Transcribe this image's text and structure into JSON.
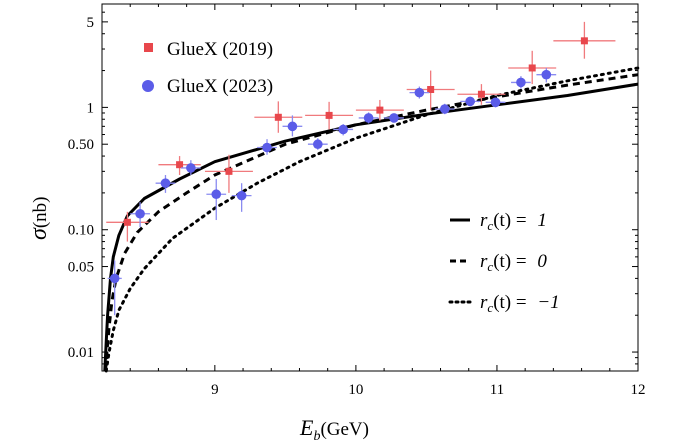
{
  "chart_data": {
    "type": "scatter",
    "xlabel_main": "E",
    "xlabel_sub": "b",
    "xlabel_unit": "(GeV)",
    "ylabel_main": "σ",
    "ylabel_unit": "(nb)",
    "xlim": [
      8.2,
      12.0
    ],
    "ylim": [
      0.007,
      7.0
    ],
    "yscale": "log",
    "x_ticks": [
      9,
      10,
      11,
      12
    ],
    "x_tick_labels": [
      "9",
      "10",
      "11",
      "12"
    ],
    "y_ticks": [
      0.01,
      0.05,
      0.1,
      0.5,
      1,
      5
    ],
    "y_tick_labels": [
      "0.01",
      "0.05",
      "0.10",
      "0.50",
      "1",
      "5"
    ],
    "legend_points": [
      {
        "name": "GlueX (2019)",
        "color": "#e8474c",
        "marker": "square"
      },
      {
        "name": "GlueX (2023)",
        "color": "#5b5ce8",
        "marker": "circle"
      }
    ],
    "legend_lines": [
      {
        "label_pre": "r",
        "label_sub": "c",
        "label_post": "(t) = ",
        "label_val": "1",
        "dash": "solid"
      },
      {
        "label_pre": "r",
        "label_sub": "c",
        "label_post": "(t) = ",
        "label_val": "0",
        "dash": "dashed"
      },
      {
        "label_pre": "r",
        "label_sub": "c",
        "label_post": "(t) = ",
        "label_val": "−1",
        "dash": "dotted"
      }
    ],
    "series": [
      {
        "name": "GlueX (2019)",
        "marker": "square",
        "color": "#e8474c",
        "points": [
          {
            "x": 8.38,
            "y": 0.115,
            "xerr": 0.15,
            "ylo": 0.08,
            "yhi": 0.14
          },
          {
            "x": 8.75,
            "y": 0.34,
            "xerr": 0.15,
            "ylo": 0.28,
            "yhi": 0.4
          },
          {
            "x": 9.1,
            "y": 0.3,
            "xerr": 0.17,
            "ylo": 0.2,
            "yhi": 0.41
          },
          {
            "x": 9.45,
            "y": 0.83,
            "xerr": 0.17,
            "ylo": 0.62,
            "yhi": 1.12
          },
          {
            "x": 9.81,
            "y": 0.86,
            "xerr": 0.17,
            "ylo": 0.66,
            "yhi": 1.11
          },
          {
            "x": 10.17,
            "y": 0.95,
            "xerr": 0.17,
            "ylo": 0.78,
            "yhi": 1.15
          },
          {
            "x": 10.53,
            "y": 1.4,
            "xerr": 0.17,
            "ylo": 0.95,
            "yhi": 2.0
          },
          {
            "x": 10.89,
            "y": 1.28,
            "xerr": 0.17,
            "ylo": 1.05,
            "yhi": 1.55
          },
          {
            "x": 11.25,
            "y": 2.1,
            "xerr": 0.17,
            "ylo": 1.55,
            "yhi": 2.9
          },
          {
            "x": 11.62,
            "y": 3.5,
            "xerr": 0.22,
            "ylo": 2.5,
            "yhi": 5.0
          }
        ]
      },
      {
        "name": "GlueX (2023)",
        "marker": "circle",
        "color": "#5b5ce8",
        "points": [
          {
            "x": 8.29,
            "y": 0.04,
            "xerr": 0.05,
            "ylo": 0.02,
            "yhi": 0.056
          },
          {
            "x": 8.47,
            "y": 0.135,
            "xerr": 0.07,
            "ylo": 0.105,
            "yhi": 0.168
          },
          {
            "x": 8.65,
            "y": 0.24,
            "xerr": 0.07,
            "ylo": 0.2,
            "yhi": 0.28
          },
          {
            "x": 8.83,
            "y": 0.32,
            "xerr": 0.07,
            "ylo": 0.28,
            "yhi": 0.37
          },
          {
            "x": 9.01,
            "y": 0.195,
            "xerr": 0.07,
            "ylo": 0.12,
            "yhi": 0.26
          },
          {
            "x": 9.19,
            "y": 0.19,
            "xerr": 0.07,
            "ylo": 0.14,
            "yhi": 0.24
          },
          {
            "x": 9.37,
            "y": 0.47,
            "xerr": 0.07,
            "ylo": 0.41,
            "yhi": 0.55
          },
          {
            "x": 9.55,
            "y": 0.7,
            "xerr": 0.07,
            "ylo": 0.58,
            "yhi": 0.86
          },
          {
            "x": 9.73,
            "y": 0.5,
            "xerr": 0.07,
            "ylo": 0.45,
            "yhi": 0.56
          },
          {
            "x": 9.91,
            "y": 0.66,
            "xerr": 0.07,
            "ylo": 0.59,
            "yhi": 0.73
          },
          {
            "x": 10.09,
            "y": 0.82,
            "xerr": 0.07,
            "ylo": 0.74,
            "yhi": 0.91
          },
          {
            "x": 10.27,
            "y": 0.82,
            "xerr": 0.07,
            "ylo": 0.75,
            "yhi": 0.89
          },
          {
            "x": 10.45,
            "y": 1.32,
            "xerr": 0.07,
            "ylo": 1.18,
            "yhi": 1.48
          },
          {
            "x": 10.63,
            "y": 0.97,
            "xerr": 0.07,
            "ylo": 0.88,
            "yhi": 1.07
          },
          {
            "x": 10.81,
            "y": 1.12,
            "xerr": 0.07,
            "ylo": 1.02,
            "yhi": 1.22
          },
          {
            "x": 10.99,
            "y": 1.1,
            "xerr": 0.07,
            "ylo": 1.0,
            "yhi": 1.2
          },
          {
            "x": 11.17,
            "y": 1.6,
            "xerr": 0.07,
            "ylo": 1.42,
            "yhi": 1.8
          },
          {
            "x": 11.35,
            "y": 1.85,
            "xerr": 0.07,
            "ylo": 1.6,
            "yhi": 2.1
          }
        ]
      }
    ],
    "curves": [
      {
        "name": "r_c(t) = 1",
        "dash": "solid",
        "x": [
          8.22,
          8.23,
          8.24,
          8.26,
          8.28,
          8.32,
          8.38,
          8.5,
          8.75,
          9.0,
          9.5,
          10.0,
          10.5,
          11.0,
          11.5,
          12.0
        ],
        "y": [
          0.007,
          0.012,
          0.02,
          0.04,
          0.06,
          0.09,
          0.13,
          0.18,
          0.26,
          0.36,
          0.53,
          0.72,
          0.88,
          1.05,
          1.25,
          1.55
        ]
      },
      {
        "name": "r_c(t) = 0",
        "dash": "dashed",
        "x": [
          8.225,
          8.235,
          8.25,
          8.27,
          8.3,
          8.36,
          8.45,
          8.6,
          8.8,
          9.0,
          9.5,
          10.0,
          10.5,
          11.0,
          11.5,
          12.0
        ],
        "y": [
          0.007,
          0.01,
          0.016,
          0.026,
          0.04,
          0.064,
          0.095,
          0.14,
          0.2,
          0.28,
          0.5,
          0.72,
          0.95,
          1.22,
          1.52,
          1.85
        ]
      },
      {
        "name": "r_c(t) = -1",
        "dash": "dotted",
        "x": [
          8.23,
          8.25,
          8.28,
          8.32,
          8.4,
          8.5,
          8.7,
          9.0,
          9.3,
          9.6,
          10.0,
          10.5,
          11.0,
          11.5,
          12.0
        ],
        "y": [
          0.007,
          0.01,
          0.015,
          0.022,
          0.033,
          0.048,
          0.085,
          0.15,
          0.24,
          0.36,
          0.56,
          0.87,
          1.25,
          1.65,
          2.1
        ]
      }
    ]
  }
}
